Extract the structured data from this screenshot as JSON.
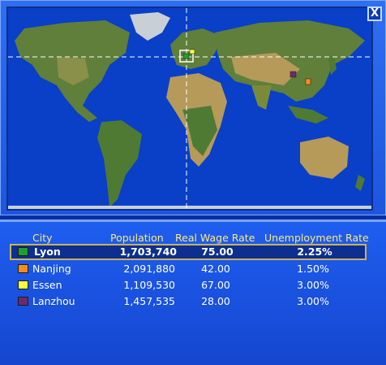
{
  "window": {
    "close_label": "X"
  },
  "map": {
    "ocean_color": "#0a3fc7",
    "land_color": "#5f7f3a",
    "desert_color": "#b59a5a",
    "crosshair_color": "#ffffff"
  },
  "table": {
    "headers": {
      "city": "City",
      "population": "Population",
      "wage": "Real Wage Rate",
      "unemployment": "Unemployment Rate"
    },
    "rows": [
      {
        "city": "Lyon",
        "population": "1,703,740",
        "wage": "75.00",
        "unemployment": "2.25%",
        "color": "#1fa02c",
        "selected": true
      },
      {
        "city": "Nanjing",
        "population": "2,091,880",
        "wage": "42.00",
        "unemployment": "1.50%",
        "color": "#ff8a1c",
        "selected": false
      },
      {
        "city": "Essen",
        "population": "1,109,530",
        "wage": "67.00",
        "unemployment": "3.00%",
        "color": "#ffff3a",
        "selected": false
      },
      {
        "city": "Lanzhou",
        "population": "1,457,535",
        "wage": "28.00",
        "unemployment": "3.00%",
        "color": "#6a2b6e",
        "selected": false
      }
    ]
  }
}
